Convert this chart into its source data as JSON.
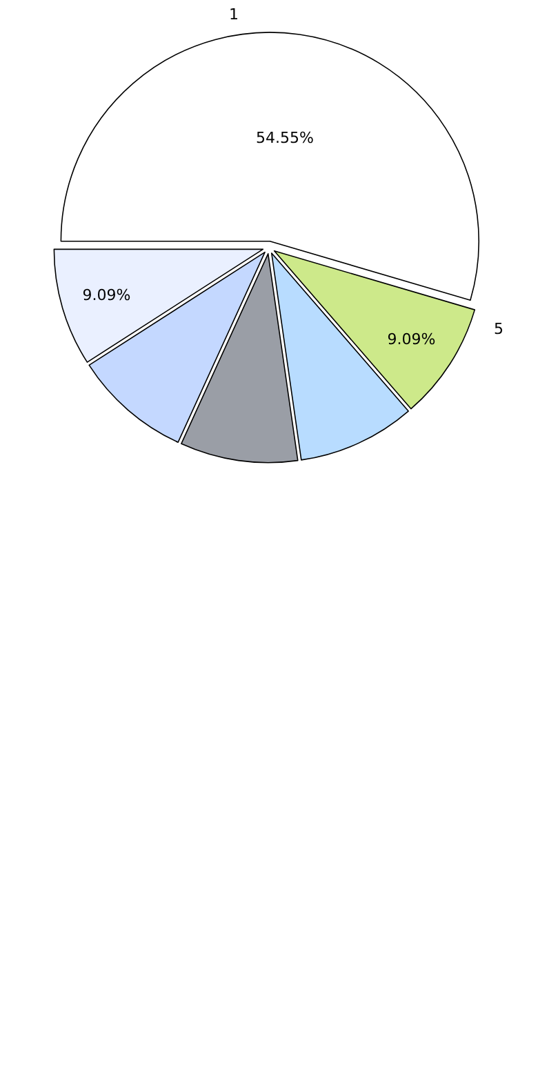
{
  "chart_data": {
    "type": "pie",
    "categories": [
      "1",
      null,
      null,
      null,
      null,
      "5"
    ],
    "values": [
      54.55,
      9.09,
      9.09,
      9.09,
      9.09,
      9.09
    ],
    "value_labels": [
      "54.55%",
      "9.09%",
      null,
      null,
      null,
      "9.09%"
    ],
    "colors": [
      "#ffffff",
      "#eaf0ff",
      "#c4d8ff",
      "#9a9ea6",
      "#b8dcff",
      "#cde98a"
    ],
    "legend": false
  }
}
